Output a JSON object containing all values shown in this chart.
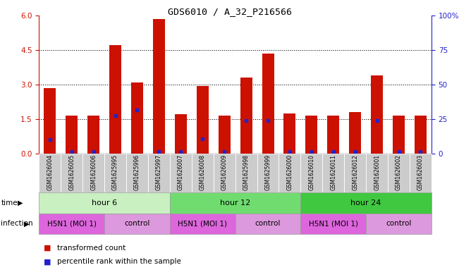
{
  "title": "GDS6010 / A_32_P216566",
  "samples": [
    "GSM1626004",
    "GSM1626005",
    "GSM1626006",
    "GSM1625995",
    "GSM1625996",
    "GSM1625997",
    "GSM1626007",
    "GSM1626008",
    "GSM1626009",
    "GSM1625998",
    "GSM1625999",
    "GSM1626000",
    "GSM1626010",
    "GSM1626011",
    "GSM1626012",
    "GSM1626001",
    "GSM1626002",
    "GSM1626003"
  ],
  "red_values": [
    2.85,
    1.65,
    1.65,
    4.7,
    3.1,
    5.85,
    1.7,
    2.95,
    1.65,
    3.3,
    4.35,
    1.75,
    1.65,
    1.65,
    1.8,
    3.4,
    1.65,
    1.65
  ],
  "blue_values": [
    0.6,
    0.1,
    0.1,
    1.65,
    1.9,
    0.1,
    0.1,
    0.65,
    0.1,
    1.45,
    1.45,
    0.1,
    0.1,
    0.1,
    0.1,
    1.45,
    0.1,
    0.1
  ],
  "time_groups": [
    {
      "label": "hour 6",
      "start": 0,
      "end": 6,
      "color": "#c8f0c0"
    },
    {
      "label": "hour 12",
      "start": 6,
      "end": 12,
      "color": "#70dc70"
    },
    {
      "label": "hour 24",
      "start": 12,
      "end": 18,
      "color": "#40c840"
    }
  ],
  "infection_groups": [
    {
      "label": "H5N1 (MOI 1)",
      "start": 0,
      "end": 3,
      "color": "#dd66dd"
    },
    {
      "label": "control",
      "start": 3,
      "end": 6,
      "color": "#dd99dd"
    },
    {
      "label": "H5N1 (MOI 1)",
      "start": 6,
      "end": 9,
      "color": "#dd66dd"
    },
    {
      "label": "control",
      "start": 9,
      "end": 12,
      "color": "#dd99dd"
    },
    {
      "label": "H5N1 (MOI 1)",
      "start": 12,
      "end": 15,
      "color": "#dd66dd"
    },
    {
      "label": "control",
      "start": 15,
      "end": 18,
      "color": "#dd99dd"
    }
  ],
  "ylim_left": [
    0,
    6
  ],
  "ylim_right": [
    0,
    100
  ],
  "yticks_left": [
    0,
    1.5,
    3.0,
    4.5,
    6.0
  ],
  "yticks_right": [
    0,
    25,
    50,
    75,
    100
  ],
  "bar_color": "#cc1100",
  "dot_color": "#2222cc",
  "bar_width": 0.55,
  "label_color_left": "#cc1100",
  "label_color_right": "#2222cc"
}
